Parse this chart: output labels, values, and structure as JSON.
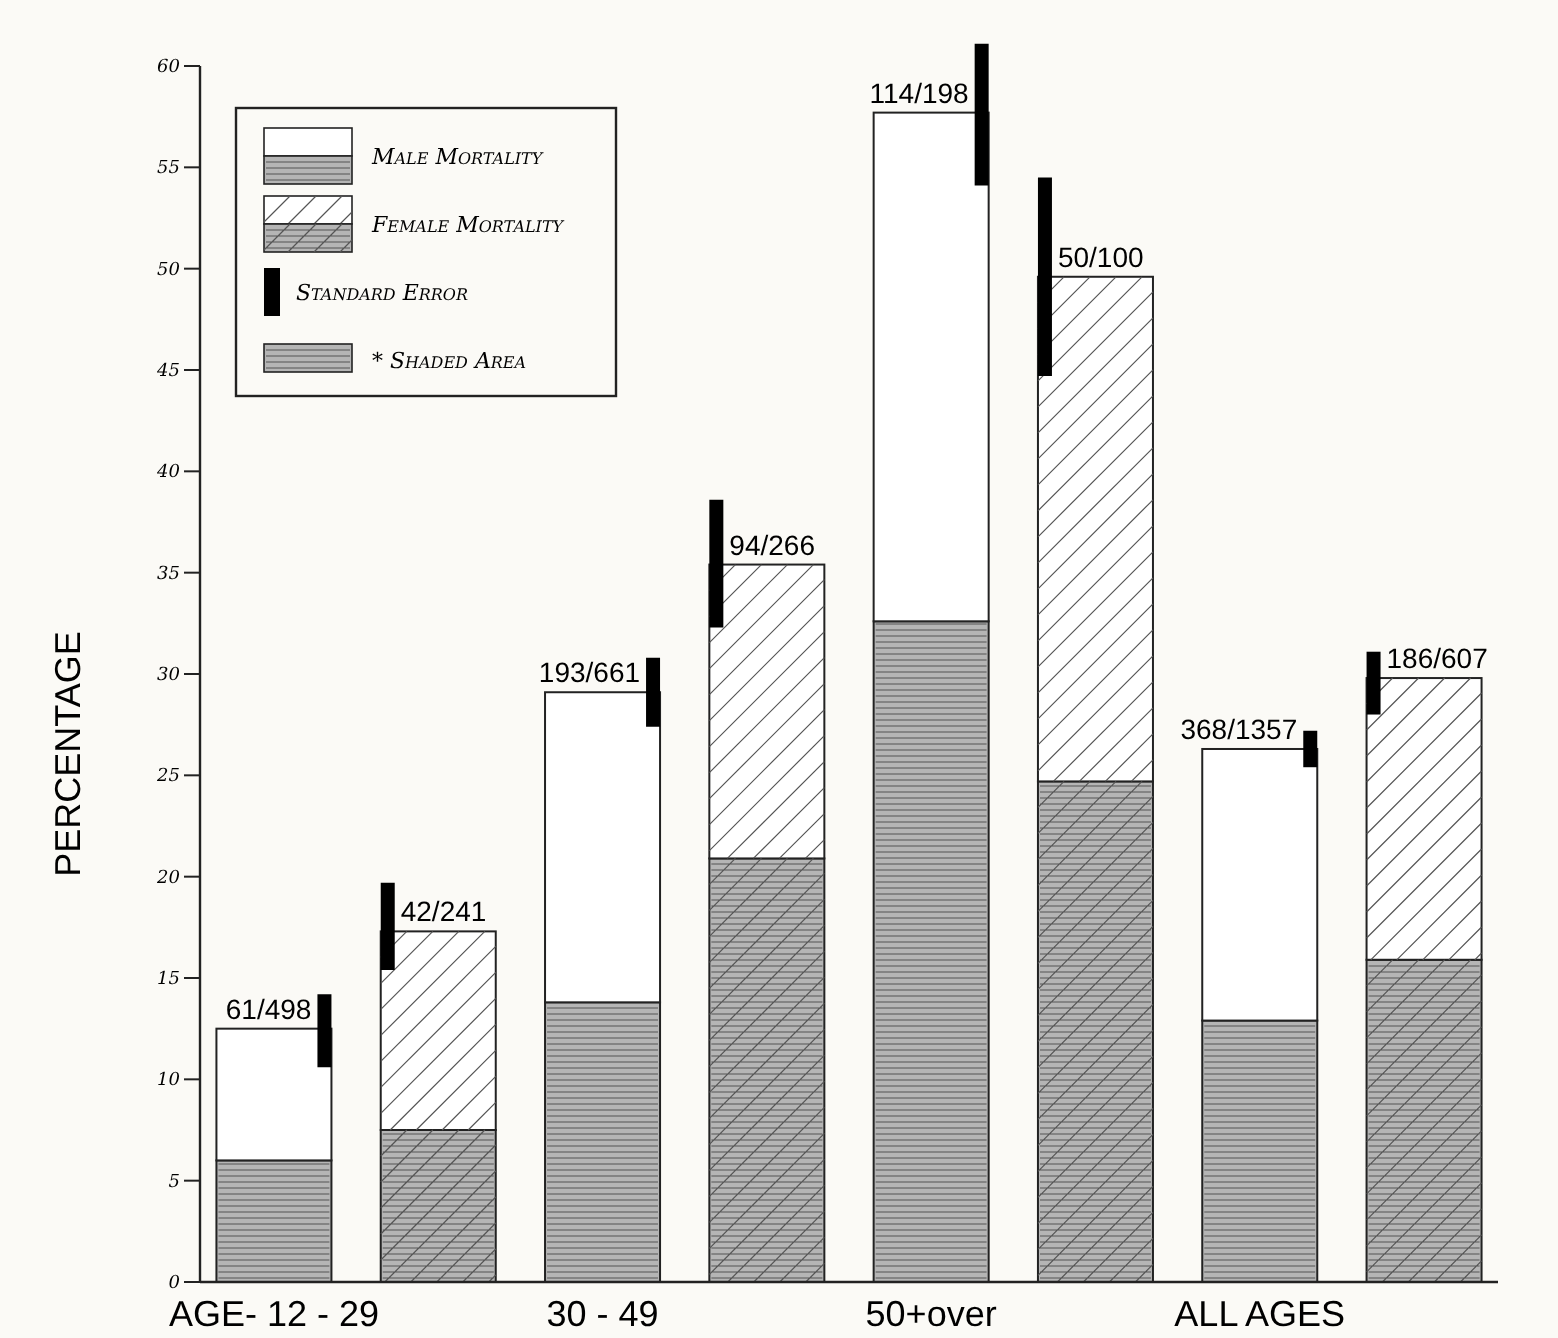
{
  "chart_data": {
    "type": "bar",
    "stacked": true,
    "ylabel": "PERCENTAGE",
    "categories": [
      "AGE- 12 - 29",
      null,
      "30 - 49",
      null,
      "50+over",
      null,
      "ALL AGES",
      null
    ],
    "ylim": [
      0,
      60
    ],
    "yticks": [
      0,
      5,
      10,
      15,
      20,
      25,
      30,
      35,
      40,
      45,
      50,
      55,
      60
    ],
    "legend": "top left",
    "grid": false,
    "series": [
      {
        "name": "* Shaded Area",
        "color": "#b5b5b5",
        "values": [
          6.0,
          null,
          13.8,
          null,
          32.6,
          null,
          12.9,
          null
        ]
      },
      {
        "name": "Male Mortality",
        "color": "#ffffff",
        "values": [
          6.5,
          null,
          15.3,
          null,
          25.1,
          null,
          13.4,
          null
        ],
        "errors": [
          [
            10.6,
            14.2
          ],
          null,
          [
            27.4,
            30.8
          ],
          null,
          [
            54.1,
            61.1
          ],
          null,
          [
            25.4,
            27.2
          ],
          null
        ],
        "value_labels": [
          "61/498",
          null,
          "193/661",
          null,
          "114/198",
          null,
          "368/1357",
          null
        ]
      },
      {
        "color": "#b5b5b5",
        "values": [
          null,
          7.5,
          null,
          20.9,
          null,
          24.7,
          null,
          15.9
        ]
      },
      {
        "name": "Female Mortality",
        "color": "#ffffff",
        "values": [
          null,
          9.8,
          null,
          14.5,
          null,
          24.9,
          null,
          13.9
        ],
        "errors": [
          null,
          [
            15.4,
            19.7
          ],
          null,
          [
            32.3,
            38.6
          ],
          null,
          [
            44.7,
            54.5
          ],
          null,
          [
            28.0,
            31.1
          ]
        ],
        "value_labels": [
          null,
          "42/241",
          null,
          "94/266",
          null,
          "50/100",
          null,
          "186/607"
        ]
      }
    ],
    "annotations": [
      "Standard Error"
    ]
  }
}
